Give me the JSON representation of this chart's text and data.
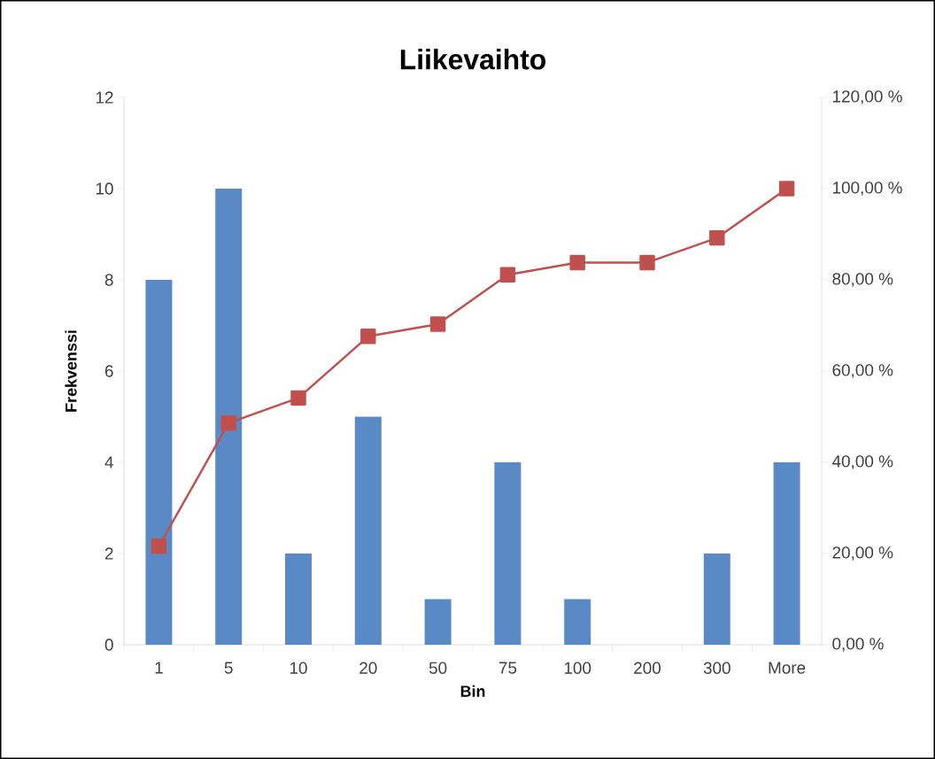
{
  "chart_data": {
    "type": "bar",
    "title": "Liikevaihto",
    "xlabel": "Bin",
    "ylabel": "Frekvenssi",
    "categories": [
      "1",
      "5",
      "10",
      "20",
      "50",
      "75",
      "100",
      "200",
      "300",
      "More"
    ],
    "series": [
      {
        "color": "#5a8ac6",
        "values": [
          8,
          10,
          2,
          5,
          1,
          4,
          1,
          0,
          2,
          4
        ]
      },
      {
        "type": "line",
        "axis": "y2",
        "color": "#c0504d",
        "values": [
          21.6,
          48.6,
          54.1,
          67.6,
          70.3,
          81.1,
          83.8,
          83.8,
          89.2,
          100
        ]
      }
    ],
    "marker": "square",
    "ylim": [
      0,
      12
    ],
    "yticks": [
      0,
      2,
      4,
      6,
      8,
      10,
      12
    ],
    "y2lim": [
      0,
      120
    ],
    "y2ticks": [
      {
        "value": 0,
        "label": "0,00 %"
      },
      {
        "value": 20,
        "label": "20,00 %"
      },
      {
        "value": 40,
        "label": "40,00 %"
      },
      {
        "value": 60,
        "label": "60,00 %"
      },
      {
        "value": 80,
        "label": "80,00 %"
      },
      {
        "value": 100,
        "label": "100,00 %"
      },
      {
        "value": 120,
        "label": "120,00 %"
      }
    ]
  }
}
